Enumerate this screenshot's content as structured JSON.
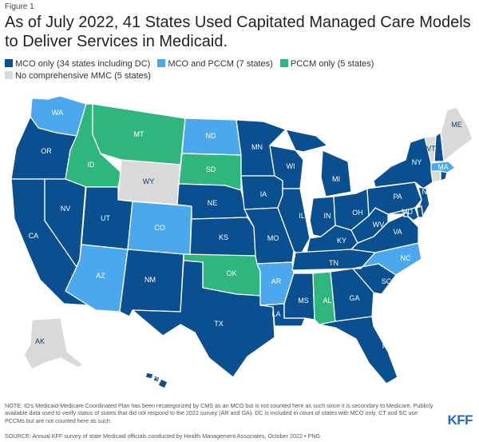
{
  "figure_label": "Figure 1",
  "title": "As of July 2022, 41 States Used Capitated Managed Care Models to Deliver Services in Medicaid.",
  "legend": [
    {
      "key": "mco",
      "label": "MCO only (34 states including DC)",
      "color": "#0a4f8f"
    },
    {
      "key": "both",
      "label": "MCO and PCCM (7 states)",
      "color": "#4ba8ec"
    },
    {
      "key": "pccm",
      "label": "PCCM only (5 states)",
      "color": "#2eb67d"
    },
    {
      "key": "none",
      "label": "No comprehensive MMC (5 states)",
      "color": "#d9d9d9"
    }
  ],
  "label_colors": {
    "dark": "#ffffff",
    "light": "#0a3f73"
  },
  "states": [
    {
      "code": "WA",
      "category": "both"
    },
    {
      "code": "OR",
      "category": "mco"
    },
    {
      "code": "CA",
      "category": "mco"
    },
    {
      "code": "NV",
      "category": "mco"
    },
    {
      "code": "ID",
      "category": "pccm"
    },
    {
      "code": "MT",
      "category": "pccm"
    },
    {
      "code": "WY",
      "category": "none"
    },
    {
      "code": "UT",
      "category": "mco"
    },
    {
      "code": "AZ",
      "category": "both"
    },
    {
      "code": "CO",
      "category": "both"
    },
    {
      "code": "NM",
      "category": "mco"
    },
    {
      "code": "ND",
      "category": "both"
    },
    {
      "code": "SD",
      "category": "pccm"
    },
    {
      "code": "NE",
      "category": "mco"
    },
    {
      "code": "KS",
      "category": "mco"
    },
    {
      "code": "OK",
      "category": "pccm"
    },
    {
      "code": "TX",
      "category": "mco"
    },
    {
      "code": "MN",
      "category": "mco"
    },
    {
      "code": "IA",
      "category": "mco"
    },
    {
      "code": "MO",
      "category": "mco"
    },
    {
      "code": "AR",
      "category": "both"
    },
    {
      "code": "LA",
      "category": "mco"
    },
    {
      "code": "WI",
      "category": "mco"
    },
    {
      "code": "IL",
      "category": "mco"
    },
    {
      "code": "MI",
      "category": "mco"
    },
    {
      "code": "IN",
      "category": "mco"
    },
    {
      "code": "OH",
      "category": "mco"
    },
    {
      "code": "KY",
      "category": "mco"
    },
    {
      "code": "TN",
      "category": "mco"
    },
    {
      "code": "MS",
      "category": "mco"
    },
    {
      "code": "AL",
      "category": "pccm"
    },
    {
      "code": "GA",
      "category": "mco"
    },
    {
      "code": "FL",
      "category": "mco"
    },
    {
      "code": "SC",
      "category": "mco"
    },
    {
      "code": "NC",
      "category": "both"
    },
    {
      "code": "VA",
      "category": "mco"
    },
    {
      "code": "WV",
      "category": "mco"
    },
    {
      "code": "PA",
      "category": "mco"
    },
    {
      "code": "NY",
      "category": "mco"
    },
    {
      "code": "NJ",
      "category": "mco"
    },
    {
      "code": "MD",
      "category": "mco"
    },
    {
      "code": "DE",
      "category": "mco"
    },
    {
      "code": "DC",
      "category": "mco"
    },
    {
      "code": "VT",
      "category": "none"
    },
    {
      "code": "NH",
      "category": "mco"
    },
    {
      "code": "ME",
      "category": "none"
    },
    {
      "code": "MA",
      "category": "both"
    },
    {
      "code": "CT",
      "category": "none"
    },
    {
      "code": "RI",
      "category": "mco"
    },
    {
      "code": "AK",
      "category": "none"
    },
    {
      "code": "HI",
      "category": "mco"
    }
  ],
  "note": "NOTE: ID's Medicaid-Medicare Coordinated Plan has been recategorized by CMS as an MCO but is not counted here as such since it is secondary to Medicare. Publicly available data used to verify status of states that did not respond to the 2022 survey (AR and GA). DC is included in count of states with MCO only. CT and SC use PCCMs but are not counted here as such.",
  "source": "SOURCE: Annual KFF survey of state Medicaid officials conducted by Health Management Associates, October 2022 •",
  "source_link": "PNG",
  "brand": "KFF"
}
